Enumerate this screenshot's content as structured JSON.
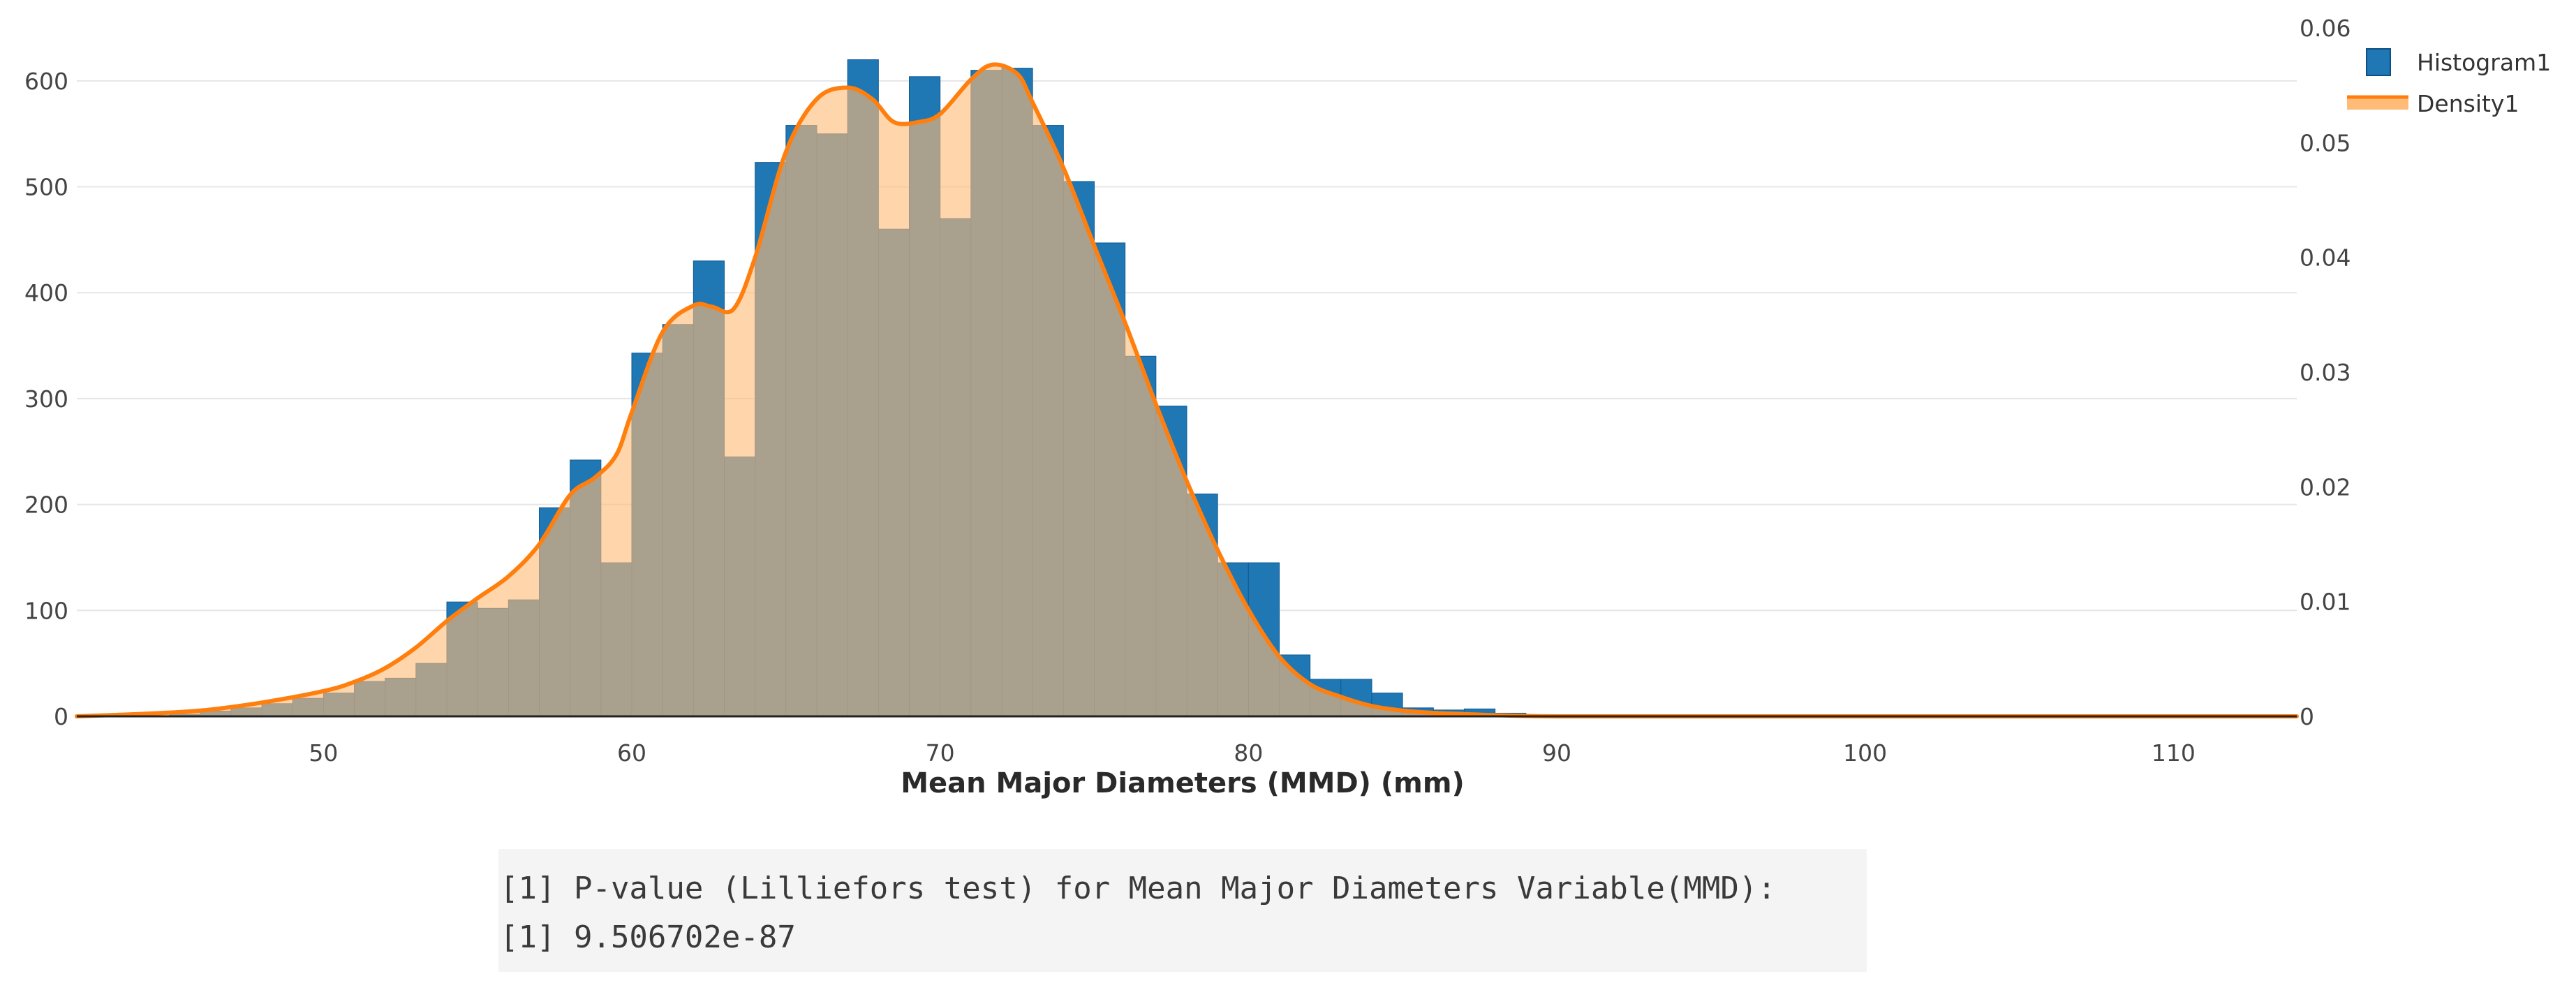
{
  "chart_data": {
    "type": "bar",
    "series": [
      {
        "name": "Histogram1",
        "kind": "histogram",
        "color": "#1f77b4",
        "bin_width": 1,
        "bin_start": [
          45,
          46,
          47,
          48,
          49,
          50,
          51,
          52,
          53,
          54,
          55,
          56,
          57,
          58,
          59,
          60,
          61,
          62,
          63,
          64,
          65,
          66,
          67,
          68,
          69,
          70,
          71,
          72,
          73,
          74,
          75,
          76,
          77,
          78,
          79,
          80,
          81,
          82,
          83,
          84,
          85,
          86,
          87,
          88
        ],
        "counts": [
          2,
          5,
          8,
          12,
          17,
          22,
          33,
          36,
          50,
          108,
          102,
          110,
          197,
          242,
          145,
          343,
          370,
          430,
          245,
          523,
          558,
          550,
          620,
          460,
          604,
          470,
          610,
          612,
          558,
          505,
          447,
          340,
          293,
          210,
          145,
          145,
          58,
          35,
          35,
          22,
          8,
          6,
          7,
          3
        ]
      },
      {
        "name": "Density1",
        "kind": "density",
        "color": "#ff7f0e",
        "fill": "#ffbb78",
        "x": [
          42,
          44,
          46,
          48,
          50,
          51,
          52,
          53,
          54,
          55,
          56,
          57,
          58,
          58.8,
          59.5,
          60,
          61,
          62,
          62.6,
          63.3,
          64,
          65,
          66,
          67,
          67.8,
          68.5,
          69.3,
          70,
          71,
          71.7,
          72.5,
          73,
          74,
          75,
          76,
          77,
          78,
          79,
          80,
          81,
          82,
          83,
          84,
          85,
          86,
          87,
          88,
          90,
          95,
          100,
          105,
          110,
          114
        ],
        "y": [
          0,
          0.0002,
          0.0005,
          0.0012,
          0.0022,
          0.003,
          0.0042,
          0.006,
          0.0083,
          0.0103,
          0.0122,
          0.015,
          0.0193,
          0.0208,
          0.0228,
          0.0265,
          0.0335,
          0.0358,
          0.0357,
          0.0355,
          0.04,
          0.0492,
          0.0538,
          0.0548,
          0.0538,
          0.0518,
          0.0518,
          0.0525,
          0.0555,
          0.0568,
          0.056,
          0.0535,
          0.0478,
          0.041,
          0.0343,
          0.0272,
          0.0205,
          0.0145,
          0.0093,
          0.0052,
          0.0028,
          0.0017,
          0.0009,
          0.0005,
          0.0003,
          0.0002,
          0.0001,
          0,
          0,
          0,
          0,
          0,
          0
        ]
      }
    ],
    "xlabel": "Mean Major Diameters (MMD) (mm)",
    "x_range": [
      42,
      114
    ],
    "x_ticks": [
      "50",
      "60",
      "70",
      "80",
      "90",
      "100",
      "110"
    ],
    "x_tick_values": [
      50,
      60,
      70,
      80,
      90,
      100,
      110
    ],
    "y_left_range": [
      0,
      650
    ],
    "y_left_ticks": [
      "0",
      "100",
      "200",
      "300",
      "400",
      "500",
      "600"
    ],
    "y_left_tick_values": [
      0,
      100,
      200,
      300,
      400,
      500,
      600
    ],
    "y_right_range": [
      0,
      0.06
    ],
    "y_right_ticks": [
      "0",
      "0.01",
      "0.02",
      "0.03",
      "0.04",
      "0.05",
      "0.06"
    ],
    "y_right_tick_values": [
      0,
      0.01,
      0.02,
      0.03,
      0.04,
      0.05,
      0.06
    ],
    "grid": true,
    "legend_position": "top-right"
  },
  "console": {
    "lines": [
      "[1] P-value (Lilliefors test) for Mean Major Diameters Variable(MMD):",
      "[1] 9.506702e-87"
    ]
  }
}
